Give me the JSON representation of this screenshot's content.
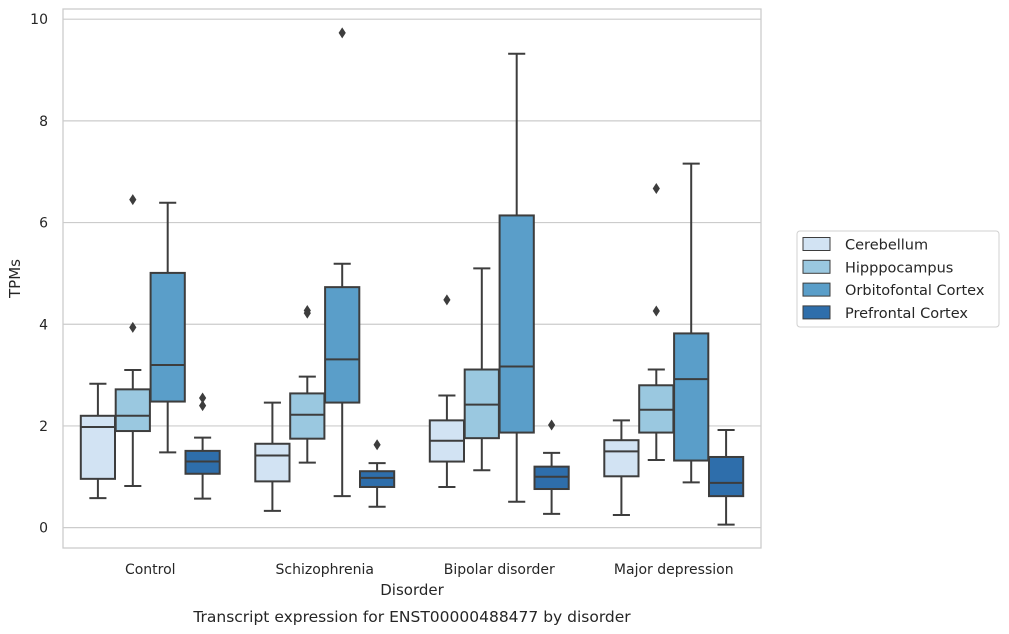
{
  "caption": "Transcript expression for ENST00000488477 by disorder",
  "chart_data": {
    "type": "box",
    "xlabel": "Disorder",
    "ylabel": "TPMs",
    "ylim": [
      -0.4,
      10.2
    ],
    "yticks": [
      0,
      2,
      4,
      6,
      8,
      10
    ],
    "grid": "horizontal",
    "legend_position": "right",
    "categories": [
      "Control",
      "Schizophrenia",
      "Bipolar disorder",
      "Major depression"
    ],
    "series": [
      {
        "name": "Cerebellum",
        "color": "#d2e3f3",
        "boxes": [
          {
            "whisker_low": 0.58,
            "q1": 0.96,
            "median": 1.98,
            "q3": 2.2,
            "whisker_high": 2.83,
            "outliers": []
          },
          {
            "whisker_low": 0.33,
            "q1": 0.91,
            "median": 1.42,
            "q3": 1.65,
            "whisker_high": 2.46,
            "outliers": []
          },
          {
            "whisker_low": 0.8,
            "q1": 1.3,
            "median": 1.71,
            "q3": 2.11,
            "whisker_high": 2.6,
            "outliers": [
              4.48
            ]
          },
          {
            "whisker_low": 0.25,
            "q1": 1.01,
            "median": 1.5,
            "q3": 1.72,
            "whisker_high": 2.11,
            "outliers": []
          }
        ]
      },
      {
        "name": "Hipppocampus",
        "color": "#9ac8e0",
        "boxes": [
          {
            "whisker_low": 0.82,
            "q1": 1.9,
            "median": 2.2,
            "q3": 2.72,
            "whisker_high": 3.1,
            "outliers": [
              3.94,
              6.45
            ]
          },
          {
            "whisker_low": 1.28,
            "q1": 1.75,
            "median": 2.22,
            "q3": 2.64,
            "whisker_high": 2.97,
            "outliers": [
              4.22,
              4.27
            ]
          },
          {
            "whisker_low": 1.13,
            "q1": 1.76,
            "median": 2.42,
            "q3": 3.11,
            "whisker_high": 5.1,
            "outliers": []
          },
          {
            "whisker_low": 1.33,
            "q1": 1.87,
            "median": 2.32,
            "q3": 2.8,
            "whisker_high": 3.11,
            "outliers": [
              4.26,
              6.67
            ]
          }
        ]
      },
      {
        "name": "Orbitofontal Cortex",
        "color": "#5a9ec9",
        "boxes": [
          {
            "whisker_low": 1.48,
            "q1": 2.48,
            "median": 3.2,
            "q3": 5.01,
            "whisker_high": 6.39,
            "outliers": []
          },
          {
            "whisker_low": 0.62,
            "q1": 2.46,
            "median": 3.31,
            "q3": 4.73,
            "whisker_high": 5.19,
            "outliers": [
              9.73
            ]
          },
          {
            "whisker_low": 0.51,
            "q1": 1.87,
            "median": 3.17,
            "q3": 6.14,
            "whisker_high": 9.32,
            "outliers": []
          },
          {
            "whisker_low": 0.89,
            "q1": 1.32,
            "median": 2.92,
            "q3": 3.82,
            "whisker_high": 7.16,
            "outliers": []
          }
        ]
      },
      {
        "name": "Prefrontal Cortex",
        "color": "#2e6eab",
        "boxes": [
          {
            "whisker_low": 0.57,
            "q1": 1.06,
            "median": 1.3,
            "q3": 1.51,
            "whisker_high": 1.77,
            "outliers": [
              2.4,
              2.55
            ]
          },
          {
            "whisker_low": 0.41,
            "q1": 0.8,
            "median": 0.98,
            "q3": 1.11,
            "whisker_high": 1.27,
            "outliers": [
              1.63
            ]
          },
          {
            "whisker_low": 0.27,
            "q1": 0.76,
            "median": 1.0,
            "q3": 1.2,
            "whisker_high": 1.47,
            "outliers": [
              2.02
            ]
          },
          {
            "whisker_low": 0.06,
            "q1": 0.62,
            "median": 0.88,
            "q3": 1.39,
            "whisker_high": 1.92,
            "outliers": []
          }
        ]
      }
    ]
  }
}
